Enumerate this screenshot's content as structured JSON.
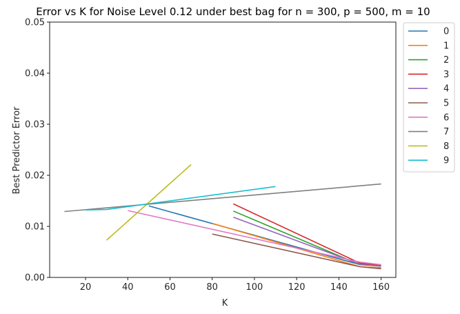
{
  "chart_data": {
    "type": "line",
    "title": "Error vs K for Noise Level 0.12 under best bag for n = 300, p = 500, m = 10",
    "xlabel": "K",
    "ylabel": "Best Predictor Error",
    "xlim": [
      3,
      167
    ],
    "ylim": [
      0,
      0.05
    ],
    "xticks": [
      20,
      40,
      60,
      80,
      100,
      120,
      140,
      160
    ],
    "yticks": [
      0.0,
      0.01,
      0.02,
      0.03,
      0.04,
      0.05
    ],
    "ytick_labels": [
      "0.00",
      "0.01",
      "0.02",
      "0.03",
      "0.04",
      "0.05"
    ],
    "grid": false,
    "legend_position": "outside-right",
    "series": [
      {
        "name": "0",
        "color": "#1f77b4",
        "x": [
          50,
          150,
          160
        ],
        "y": [
          0.014,
          0.0025,
          0.0023
        ]
      },
      {
        "name": "1",
        "color": "#ff7f0e",
        "x": [
          80,
          150,
          160
        ],
        "y": [
          0.0106,
          0.0021,
          0.0019
        ]
      },
      {
        "name": "2",
        "color": "#2ca02c",
        "x": [
          90,
          150,
          160
        ],
        "y": [
          0.013,
          0.0025,
          0.0022
        ]
      },
      {
        "name": "3",
        "color": "#d62728",
        "x": [
          90,
          150,
          160
        ],
        "y": [
          0.0144,
          0.0028,
          0.0023
        ]
      },
      {
        "name": "4",
        "color": "#9467bd",
        "x": [
          90,
          150,
          160
        ],
        "y": [
          0.0118,
          0.0026,
          0.0022
        ]
      },
      {
        "name": "5",
        "color": "#8c564b",
        "x": [
          80,
          150,
          160
        ],
        "y": [
          0.0085,
          0.0021,
          0.0017
        ]
      },
      {
        "name": "6",
        "color": "#e377c2",
        "x": [
          40,
          150,
          160
        ],
        "y": [
          0.0131,
          0.003,
          0.0025
        ]
      },
      {
        "name": "7",
        "color": "#7f7f7f",
        "x": [
          10,
          160
        ],
        "y": [
          0.0129,
          0.0183
        ]
      },
      {
        "name": "8",
        "color": "#bcbd22",
        "x": [
          30,
          70
        ],
        "y": [
          0.0073,
          0.0221
        ]
      },
      {
        "name": "9",
        "color": "#17becf",
        "x": [
          20,
          30,
          110
        ],
        "y": [
          0.0132,
          0.0133,
          0.0178
        ]
      }
    ]
  }
}
